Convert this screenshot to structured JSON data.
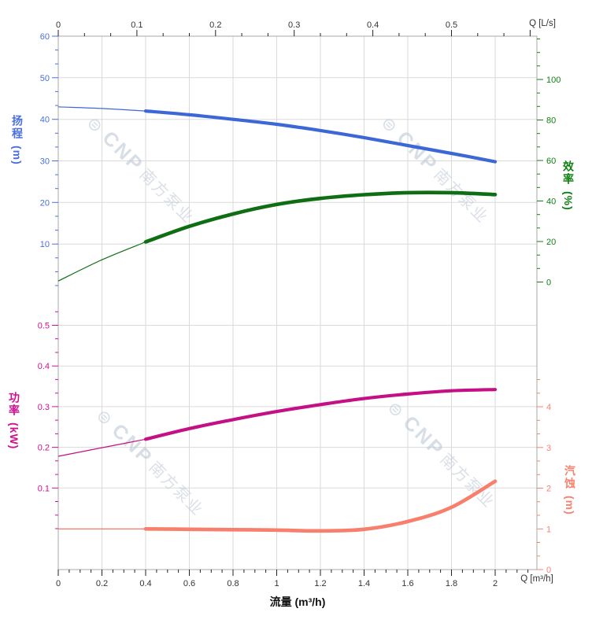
{
  "watermark": {
    "logo_glyph": "⊜",
    "brand": "CNP",
    "brand_cn": "南方泵业"
  },
  "chart_data": {
    "type": "line",
    "x_axis_bottom": {
      "axis_label": "Q [m³/h]",
      "title": "流量 (m³/h)",
      "min": 0,
      "max": 2,
      "major_step": 0.2,
      "minor_step": 0.05,
      "minor_max": 2.15,
      "tick_color": "#222222",
      "label_color": "#333333"
    },
    "x_axis_top": {
      "axis_label": "Q [L/s]",
      "min": 0,
      "max": 0.5,
      "major_step": 0.1,
      "major_max": 0.6,
      "minor_divisions": 3,
      "minor_max": 0.607,
      "unit_conversion_m3h_per_Ls": 3.6,
      "tick_color": "#222222",
      "label_color": "#333333"
    },
    "y_axes": [
      {
        "id": "head",
        "title": "扬程",
        "unit": "(m)",
        "side": "left",
        "chart": "top",
        "majors": [
          10,
          20,
          30,
          40,
          50,
          60
        ],
        "minor_divisions": 3,
        "minor_range": [
          0,
          60
        ],
        "color": "#4a6fe0",
        "gridline_majors": [
          10,
          20,
          30,
          40,
          50
        ]
      },
      {
        "id": "eff",
        "title": "效率",
        "unit": "(%)",
        "side": "right",
        "chart": "top",
        "majors": [
          0,
          20,
          40,
          60,
          80,
          100
        ],
        "minor_divisions": 3,
        "minor_range": [
          0,
          120
        ],
        "color": "#108012",
        "gridline_majors": []
      },
      {
        "id": "pow",
        "title": "功率",
        "unit": "(kW)",
        "side": "left",
        "chart": "bottom",
        "majors": [
          0.1,
          0.2,
          0.3,
          0.4,
          0.5
        ],
        "minor_divisions": 3,
        "minor_range": [
          0,
          0.54
        ],
        "color": "#d01090",
        "gridline_majors": [
          0.1,
          0.2,
          0.3,
          0.4,
          0.5
        ]
      },
      {
        "id": "npsh",
        "title": "汽蚀",
        "unit": "(m)",
        "side": "right",
        "chart": "bottom",
        "majors": [
          0,
          1,
          2,
          3,
          4
        ],
        "minor_divisions": 3,
        "minor_range": [
          0,
          4.7
        ],
        "color": "#f9826f",
        "gridline_majors": []
      }
    ],
    "series": [
      {
        "id": "head-curve",
        "name": "扬程 H-Q",
        "axis": "head",
        "color": "#3c67d6",
        "thin_until": 0.4,
        "x": [
          0,
          0.2,
          0.4,
          0.6,
          0.8,
          1,
          1.2,
          1.4,
          1.6,
          1.8,
          2
        ],
        "y": [
          43,
          42.6,
          42,
          41.1,
          40,
          38.8,
          37.3,
          35.6,
          33.7,
          31.8,
          29.8
        ]
      },
      {
        "id": "eff-curve",
        "name": "效率 η-Q",
        "axis": "eff",
        "color": "#0f6e14",
        "thin_until": 0.4,
        "x": [
          0,
          0.2,
          0.4,
          0.6,
          0.8,
          1,
          1.2,
          1.4,
          1.6,
          1.8,
          2
        ],
        "y": [
          0.5,
          11,
          19.8,
          27.5,
          33.6,
          38.3,
          41.3,
          43.1,
          44.1,
          44.1,
          43.2
        ]
      },
      {
        "id": "pow-curve",
        "name": "功率 P-Q",
        "axis": "pow",
        "color": "#c41084",
        "thin_until": 0.4,
        "x": [
          0,
          0.2,
          0.4,
          0.6,
          0.8,
          1,
          1.2,
          1.4,
          1.6,
          1.8,
          2
        ],
        "y": [
          0.178,
          0.199,
          0.22,
          0.246,
          0.268,
          0.288,
          0.305,
          0.32,
          0.331,
          0.339,
          0.342
        ]
      },
      {
        "id": "npsh-curve",
        "name": "汽蚀 NPSH-Q",
        "axis": "npsh",
        "color": "#f87f6c",
        "thin_until": 0.4,
        "x": [
          0,
          0.2,
          0.4,
          0.6,
          0.8,
          1,
          1.2,
          1.4,
          1.6,
          1.8,
          2
        ],
        "y": [
          1,
          1,
          1,
          0.99,
          0.98,
          0.97,
          0.95,
          0.99,
          1.18,
          1.53,
          2.17
        ]
      }
    ],
    "grid_on": true,
    "grid_color": "#dadada",
    "frame_color": "#a9a9a9"
  }
}
